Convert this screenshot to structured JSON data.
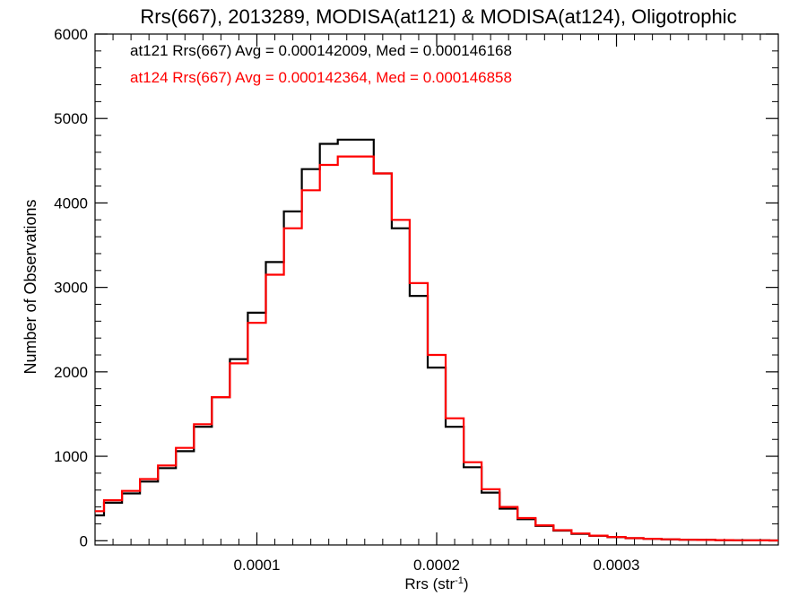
{
  "chart_data": {
    "type": "line",
    "style": "step-histogram",
    "title": "Rrs(667), 2013289, MODISA(at121) & MODISA(at124), Oligotrophic",
    "xlabel": "Rrs (str",
    "xlabel_superscript": "-1",
    "xlabel_suffix": ")",
    "ylabel": "Number of Observations",
    "xlim": [
      1e-05,
      0.00039
    ],
    "ylim": [
      -50,
      6000
    ],
    "x_ticks": [
      0.0001,
      0.0002,
      0.0003
    ],
    "x_tick_labels": [
      "0.0001",
      "0.0002",
      "0.0003"
    ],
    "y_ticks": [
      0,
      1000,
      2000,
      3000,
      4000,
      5000,
      6000
    ],
    "y_tick_labels": [
      "0",
      "1000",
      "2000",
      "3000",
      "4000",
      "5000",
      "6000"
    ],
    "grid": false,
    "legend_position": "top-left",
    "annotations": [
      {
        "text": "at121 Rrs(667) Avg = 0.000142009, Med = 0.000146168",
        "color": "#000000"
      },
      {
        "text": "at124 Rrs(667) Avg = 0.000142364, Med = 0.000146858",
        "color": "#ff0000"
      }
    ],
    "series": [
      {
        "color": "#000000",
        "x": [
          1e-05,
          2e-05,
          3e-05,
          4e-05,
          5e-05,
          6e-05,
          7e-05,
          8e-05,
          9e-05,
          0.0001,
          0.00011,
          0.00012,
          0.00013,
          0.00014,
          0.00015,
          0.00016,
          0.00017,
          0.00018,
          0.00019,
          0.0002,
          0.00021,
          0.00022,
          0.00023,
          0.00024,
          0.00025,
          0.00026,
          0.00027,
          0.00028,
          0.00029,
          0.0003,
          0.00031,
          0.00032,
          0.00033,
          0.00034,
          0.00035,
          0.00036,
          0.00037,
          0.00038,
          0.00039
        ],
        "values": [
          300,
          450,
          560,
          700,
          860,
          1060,
          1350,
          1700,
          2150,
          2700,
          3300,
          3900,
          4400,
          4700,
          4750,
          4750,
          4350,
          3700,
          2900,
          2050,
          1350,
          870,
          570,
          380,
          255,
          175,
          120,
          82,
          58,
          42,
          30,
          22,
          16,
          12,
          9,
          7,
          5,
          4,
          3
        ]
      },
      {
        "color": "#ff0000",
        "x": [
          1e-05,
          2e-05,
          3e-05,
          4e-05,
          5e-05,
          6e-05,
          7e-05,
          8e-05,
          9e-05,
          0.0001,
          0.00011,
          0.00012,
          0.00013,
          0.00014,
          0.00015,
          0.00016,
          0.00017,
          0.00018,
          0.00019,
          0.0002,
          0.00021,
          0.00022,
          0.00023,
          0.00024,
          0.00025,
          0.00026,
          0.00027,
          0.00028,
          0.00029,
          0.0003,
          0.00031,
          0.00032,
          0.00033,
          0.00034,
          0.00035,
          0.00036,
          0.00037,
          0.00038,
          0.00039
        ],
        "values": [
          350,
          480,
          590,
          730,
          890,
          1100,
          1380,
          1700,
          2100,
          2580,
          3150,
          3700,
          4150,
          4450,
          4550,
          4550,
          4350,
          3800,
          3050,
          2200,
          1450,
          930,
          610,
          400,
          268,
          182,
          125,
          86,
          60,
          44,
          31,
          23,
          17,
          12,
          9,
          7,
          5,
          4,
          3
        ]
      }
    ]
  }
}
